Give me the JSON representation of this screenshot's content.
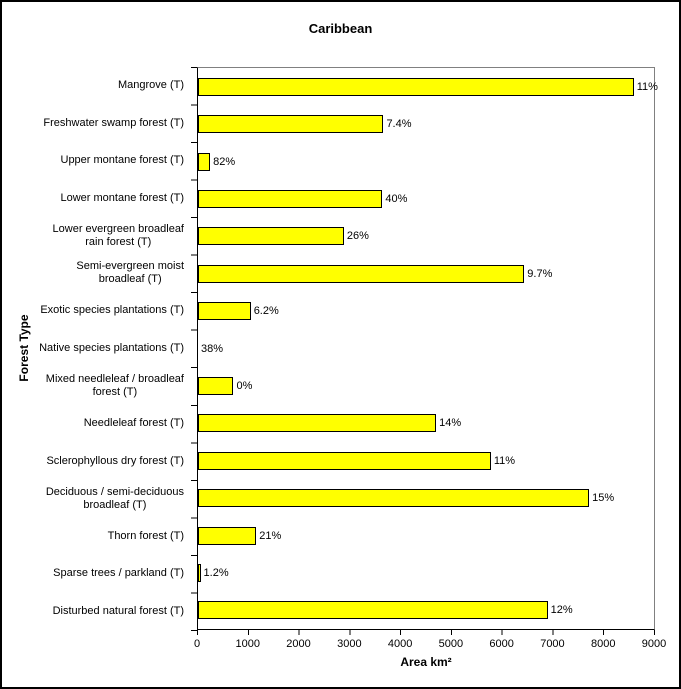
{
  "chart_data": {
    "type": "bar",
    "orientation": "horizontal",
    "title": "Caribbean",
    "xlabel": "Area km²",
    "ylabel": "Forest Type",
    "xlim": [
      0,
      9000
    ],
    "x_ticks": [
      "0",
      "1000",
      "2000",
      "3000",
      "4000",
      "5000",
      "6000",
      "7000",
      "8000",
      "9000"
    ],
    "grid": false,
    "legend": false,
    "bar_color": "#FFFF00",
    "bar_border_color": "#000000",
    "axis_color": "#000000",
    "plot_border_color": "#808080",
    "categories": [
      "Mangrove (T)",
      "Freshwater swamp forest (T)",
      "Upper montane forest (T)",
      "Lower montane forest (T)",
      "Lower evergreen broadleaf\nrain forest (T)",
      "Semi-evergreen moist\nbroadleaf (T)",
      "Exotic species plantations (T)",
      "Native species plantations (T)",
      "Mixed needleleaf / broadleaf\nforest (T)",
      "Needleleaf forest (T)",
      "Sclerophyllous dry forest (T)",
      "Deciduous / semi-deciduous\nbroadleaf (T)",
      "Thorn forest (T)",
      "Sparse trees / parkland (T)",
      "Disturbed natural forest (T)"
    ],
    "values": [
      8600,
      3660,
      240,
      3640,
      2880,
      6440,
      1040,
      0,
      700,
      4700,
      5780,
      7720,
      1150,
      50,
      6900
    ],
    "bar_labels": [
      "11%",
      "7.4%",
      "82%",
      "40%",
      "26%",
      "9.7%",
      "6.2%",
      "38%",
      "0%",
      "14%",
      "11%",
      "15%",
      "21%",
      "1.2%",
      "12%"
    ]
  }
}
